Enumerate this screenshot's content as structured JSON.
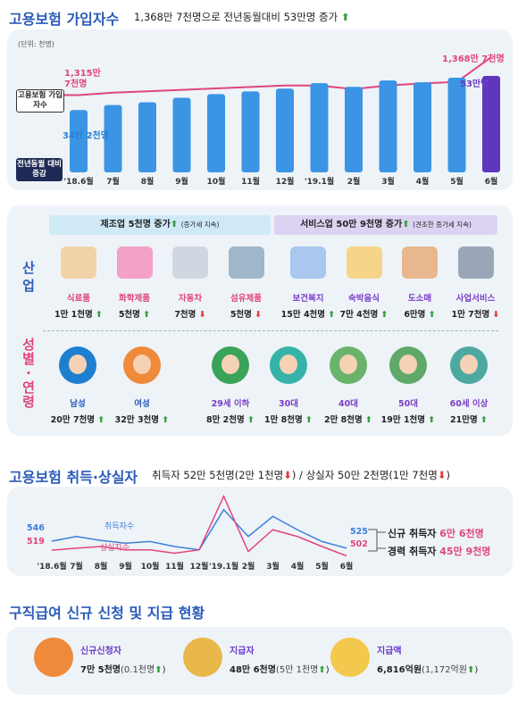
{
  "section1": {
    "title": "고용보험 가입자수",
    "subtitle": "1,368만 7천명으로 전년동월대비 53만명 증가",
    "unit": "(단위: 천명)",
    "legend_line": "고용보험 가입자수",
    "legend_bar": "전년동월 대비 증감",
    "first_line_value": "1,315만 7천명",
    "last_line_value": "1,368만 7천명",
    "first_bar_value": "34만 2천명",
    "last_bar_value": "53만명",
    "months": [
      "'18.6월",
      "7월",
      "8월",
      "9월",
      "10월",
      "11월",
      "12월",
      "'19.1월",
      "2월",
      "3월",
      "4월",
      "5월",
      "6월"
    ]
  },
  "chart_data": [
    {
      "type": "bar",
      "title": "고용보험 가입자수",
      "categories": [
        "'18.6월",
        "7월",
        "8월",
        "9월",
        "10월",
        "11월",
        "12월",
        "'19.1월",
        "2월",
        "3월",
        "4월",
        "5월",
        "6월"
      ],
      "series": [
        {
          "name": "전년동월 대비 증감",
          "values": [
            342,
            370,
            385,
            410,
            430,
            445,
            460,
            490,
            470,
            505,
            495,
            520,
            530
          ]
        },
        {
          "name": "고용보험 가입자수",
          "values": [
            13157,
            13190,
            13210,
            13230,
            13250,
            13270,
            13290,
            13290,
            13240,
            13290,
            13320,
            13340,
            13687
          ]
        }
      ]
    },
    {
      "type": "line",
      "title": "고용보험 취득·상실자",
      "categories": [
        "'18.6월",
        "7월",
        "8월",
        "9월",
        "10월",
        "11월",
        "12월",
        "'19.1월",
        "2월",
        "3월",
        "4월",
        "5월",
        "6월"
      ],
      "series": [
        {
          "name": "취득자수",
          "values": [
            546,
            560,
            548,
            540,
            545,
            530,
            520,
            640,
            560,
            620,
            580,
            545,
            525
          ]
        },
        {
          "name": "상실자수",
          "values": [
            519,
            525,
            530,
            520,
            520,
            510,
            520,
            680,
            515,
            580,
            560,
            530,
            502
          ]
        }
      ]
    }
  ],
  "section2": {
    "mfg_header": "제조업 5천명 증가",
    "mfg_note": "(증가세 지속)",
    "svc_header": "서비스업 50만 9천명 증가",
    "svc_note": "(견조한 증가세 지속)",
    "industry_label": "산 업",
    "demo_label": "성 별 · 연 령",
    "industries": [
      {
        "name": "식료품",
        "value": "1만 1천명",
        "dir": "up",
        "icon": "noodle-bowl-icon"
      },
      {
        "name": "화학제품",
        "value": "5천명",
        "dir": "up",
        "icon": "chemistry-flask-icon"
      },
      {
        "name": "자동차",
        "value": "7천명",
        "dir": "down",
        "icon": "car-icon"
      },
      {
        "name": "섬유제품",
        "value": "5천명",
        "dir": "down",
        "icon": "thread-spool-icon"
      },
      {
        "name": "보건복지",
        "value": "15만 4천명",
        "dir": "up",
        "icon": "family-health-icon"
      },
      {
        "name": "숙박음식",
        "value": "7만 4천명",
        "dir": "up",
        "icon": "bed-icon"
      },
      {
        "name": "도소매",
        "value": "6만명",
        "dir": "up",
        "icon": "store-sale-icon"
      },
      {
        "name": "사업서비스",
        "value": "1만 7천명",
        "dir": "down",
        "icon": "office-building-icon"
      }
    ],
    "demographics": [
      {
        "name": "남성",
        "value": "20만 7천명",
        "dir": "up"
      },
      {
        "name": "여성",
        "value": "32만 3천명",
        "dir": "up"
      },
      {
        "name": "29세 이하",
        "value": "8만 2천명",
        "dir": "up"
      },
      {
        "name": "30대",
        "value": "1만 8천명",
        "dir": "up"
      },
      {
        "name": "40대",
        "value": "2만 8천명",
        "dir": "up"
      },
      {
        "name": "50대",
        "value": "19만 1천명",
        "dir": "up"
      },
      {
        "name": "60세 이상",
        "value": "21만명",
        "dir": "up"
      }
    ]
  },
  "section3": {
    "title": "고용보험 취득·상실자",
    "subtitle_a": "취득자 52만 5천명(2만 1천명",
    "subtitle_b": ") / 상실자 50만 2천명(1만 7천명",
    "subtitle_c": ")",
    "acq_label": "취득자수",
    "loss_label": "상실자수",
    "acq_first": "546",
    "loss_first": "519",
    "acq_last": "525",
    "loss_last": "502",
    "new_label": "신규 취득자",
    "new_value": "6만 6천명",
    "exp_label": "경력 취득자",
    "exp_value": "45만 9천명",
    "months": [
      "'18.6월",
      "7월",
      "8월",
      "9월",
      "10월",
      "11월",
      "12월",
      "'19.1월",
      "2월",
      "3월",
      "4월",
      "5월",
      "6월"
    ]
  },
  "section4": {
    "title": "구직급여 신규 신청 및 지급 현황",
    "items": [
      {
        "label": "신규신청자",
        "value": "7만 5천명",
        "delta": "(0.1천명",
        "icon": "applicant-person-icon"
      },
      {
        "label": "지급자",
        "value": "48만 6천명",
        "delta": "(5만 1천명",
        "icon": "recipient-coins-icon"
      },
      {
        "label": "지급액",
        "value": "6,816억원",
        "delta": "(1,172억원",
        "icon": "won-coin-hand-icon"
      }
    ]
  },
  "colors": {
    "title_blue": "#2a5bb8",
    "pink": "#e0457b",
    "bar_blue": "#3b95e4",
    "purple": "#6a3cc6",
    "up_green": "#36a03c",
    "down_red": "#e33b3b"
  }
}
